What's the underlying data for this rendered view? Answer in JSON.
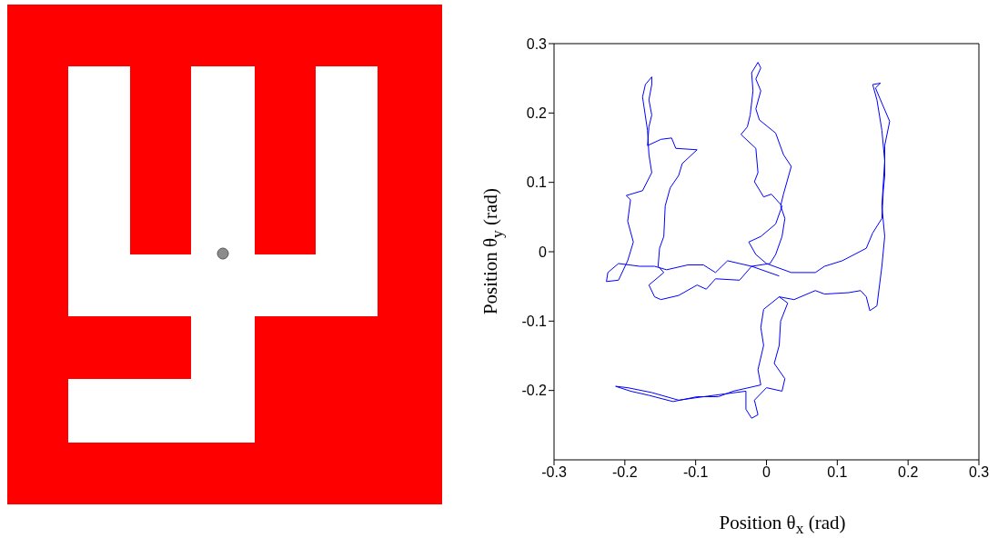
{
  "chart_data": {
    "type": "line",
    "xlabel": "Position θ$_{x}$ (rad)",
    "ylabel": "Position θ$_{y}$ (rad)",
    "xlim": [
      -0.3,
      0.3
    ],
    "ylim": [
      -0.3,
      0.3
    ],
    "xticks": [
      -0.3,
      -0.2,
      -0.1,
      0,
      0.1,
      0.2,
      0.3
    ],
    "yticks": [
      -0.2,
      -0.1,
      0,
      0.1,
      0.2,
      0.3
    ],
    "grid": false,
    "marker": "none",
    "line_style": "solid",
    "series": [
      {
        "color": "#0000ff",
        "x": [
          0.018,
          -0.021,
          -0.038,
          -0.055,
          -0.072,
          -0.089,
          -0.111,
          -0.141,
          -0.158,
          -0.179,
          -0.209,
          -0.224,
          -0.226,
          -0.209,
          -0.196,
          -0.188,
          -0.196,
          -0.192,
          -0.198,
          -0.175,
          -0.162,
          -0.166,
          -0.168,
          -0.175,
          -0.171,
          -0.162,
          -0.162,
          -0.166,
          -0.162,
          -0.166,
          -0.168,
          -0.149,
          -0.134,
          -0.128,
          -0.098,
          -0.119,
          -0.124,
          -0.136,
          -0.143,
          -0.145,
          -0.151,
          -0.153,
          -0.145,
          -0.166,
          -0.158,
          -0.149,
          -0.124,
          -0.098,
          -0.085,
          -0.072,
          -0.038,
          -0.021,
          0.005,
          0.013,
          0.022,
          0.026,
          0.02,
          0.024,
          0.035,
          0.024,
          0.013,
          -0.01,
          -0.015,
          -0.008,
          -0.015,
          -0.008,
          -0.012,
          -0.021,
          -0.019,
          -0.023,
          -0.027,
          -0.036,
          -0.015,
          -0.012,
          -0.017,
          -0.004,
          0.007,
          0.022,
          0.013,
          -0.008,
          -0.025,
          -0.015,
          0.0,
          0.035,
          0.069,
          0.082,
          0.107,
          0.124,
          0.141,
          0.15,
          0.163,
          0.165,
          0.167,
          0.167,
          0.174,
          0.161,
          0.154,
          0.161,
          0.15,
          0.156,
          0.163,
          0.167,
          0.163,
          0.167,
          0.163,
          0.156,
          0.146,
          0.141,
          0.133,
          0.116,
          0.082,
          0.069,
          0.039,
          0.018,
          -0.004,
          -0.008,
          -0.004,
          -0.012,
          -0.008,
          -0.025,
          -0.047,
          -0.068,
          -0.098,
          -0.132,
          -0.166,
          -0.192,
          -0.213,
          -0.196,
          -0.162,
          -0.124,
          -0.089,
          -0.059,
          -0.029,
          -0.029,
          -0.021,
          -0.012,
          -0.017,
          0.0,
          0.022,
          0.026,
          0.011,
          0.018,
          0.02,
          0.03,
          0.018
        ],
        "values": [
          -0.035,
          -0.021,
          -0.017,
          -0.013,
          -0.03,
          -0.019,
          -0.019,
          -0.026,
          -0.021,
          -0.021,
          -0.017,
          -0.03,
          -0.043,
          -0.041,
          -0.013,
          0.014,
          0.044,
          0.075,
          0.081,
          0.088,
          0.114,
          0.14,
          0.175,
          0.223,
          0.241,
          0.252,
          0.241,
          0.219,
          0.197,
          0.18,
          0.153,
          0.162,
          0.164,
          0.149,
          0.147,
          0.127,
          0.11,
          0.092,
          0.066,
          0.022,
          0.005,
          -0.021,
          -0.03,
          -0.048,
          -0.065,
          -0.069,
          -0.063,
          -0.048,
          -0.054,
          -0.039,
          -0.041,
          -0.021,
          -0.017,
          -0.004,
          0.022,
          0.048,
          0.066,
          0.083,
          0.123,
          0.14,
          0.171,
          0.19,
          0.206,
          0.232,
          0.249,
          0.265,
          0.273,
          0.258,
          0.232,
          0.197,
          0.18,
          0.169,
          0.149,
          0.114,
          0.101,
          0.079,
          0.083,
          0.066,
          0.04,
          0.022,
          0.014,
          -0.004,
          -0.017,
          -0.03,
          -0.03,
          -0.021,
          -0.013,
          -0.004,
          0.005,
          0.027,
          0.048,
          0.088,
          0.11,
          0.153,
          0.188,
          0.219,
          0.236,
          0.243,
          0.241,
          0.219,
          0.175,
          0.131,
          0.066,
          0.022,
          -0.021,
          -0.078,
          -0.085,
          -0.065,
          -0.056,
          -0.059,
          -0.061,
          -0.056,
          -0.069,
          -0.065,
          -0.083,
          -0.109,
          -0.135,
          -0.17,
          -0.192,
          -0.196,
          -0.201,
          -0.209,
          -0.209,
          -0.216,
          -0.207,
          -0.201,
          -0.194,
          -0.196,
          -0.203,
          -0.214,
          -0.209,
          -0.205,
          -0.201,
          -0.227,
          -0.24,
          -0.235,
          -0.214,
          -0.196,
          -0.201,
          -0.183,
          -0.161,
          -0.135,
          -0.1,
          -0.074,
          -0.065
        ]
      }
    ]
  }
}
